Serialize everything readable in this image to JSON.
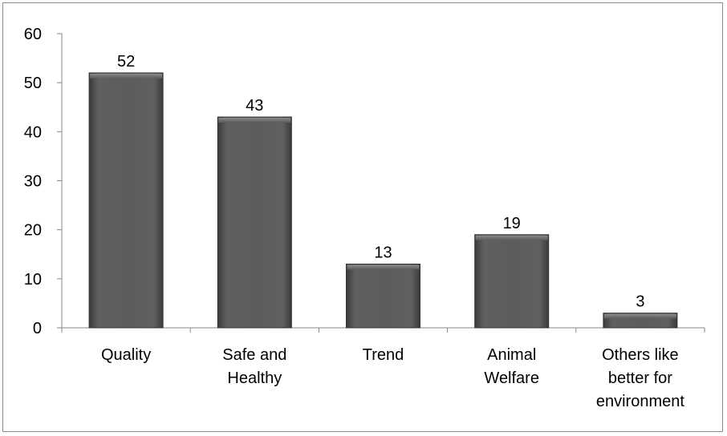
{
  "chart_data": {
    "type": "bar",
    "title": "",
    "xlabel": "",
    "ylabel": "",
    "categories": [
      [
        "Quality"
      ],
      [
        "Safe and",
        "Healthy"
      ],
      [
        "Trend"
      ],
      [
        "Animal",
        "Welfare"
      ],
      [
        "Others like",
        "better for",
        "environment"
      ]
    ],
    "values": [
      52,
      43,
      13,
      19,
      3
    ],
    "ylim": [
      0,
      60
    ],
    "yticks": [
      0,
      10,
      20,
      30,
      40,
      50,
      60
    ],
    "grid": false,
    "legend": "none",
    "bar_color": "#5a5a5a",
    "data_labels": true
  }
}
